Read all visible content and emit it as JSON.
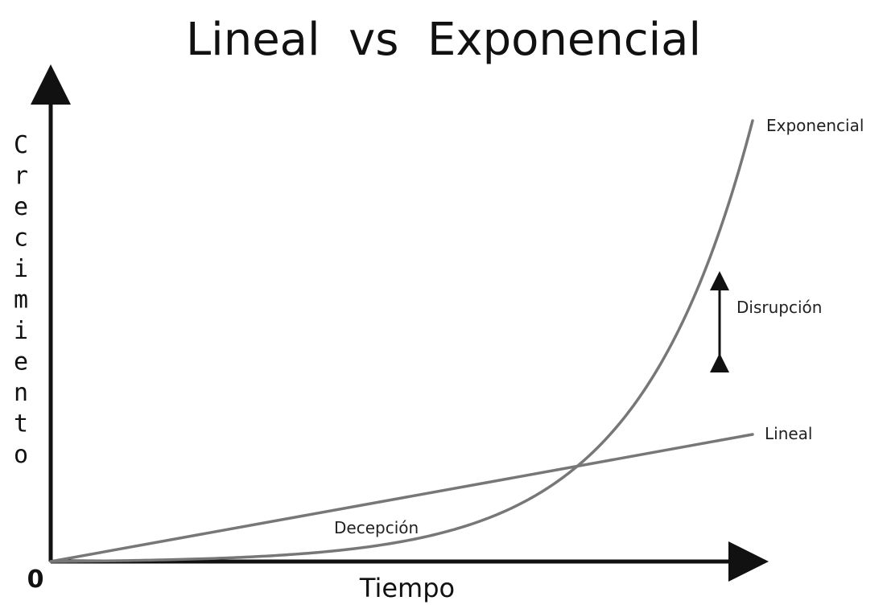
{
  "chart_data": {
    "type": "line",
    "title": "Lineal  vs  Exponencial",
    "xlabel": "Tiempo",
    "ylabel": "Crecimiento",
    "origin_label": "0",
    "grid": false,
    "legend": "none",
    "series": [
      {
        "name": "Exponencial",
        "color": "#777777",
        "formula": "exponential"
      },
      {
        "name": "Lineal",
        "color": "#777777",
        "formula": "linear"
      }
    ],
    "annotations": {
      "gap_label": "Disrupción",
      "gap_arrow_color": "#111111",
      "region_label": "Decepción"
    }
  }
}
